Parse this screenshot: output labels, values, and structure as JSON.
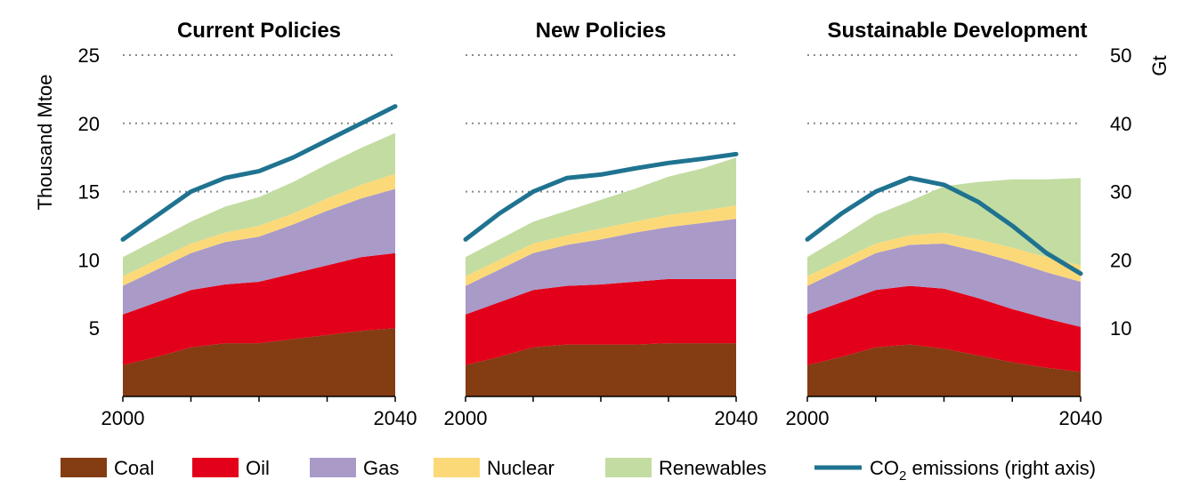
{
  "chart_data": {
    "type": "area",
    "panels": [
      {
        "title": "Current Policies",
        "x": [
          2000,
          2005,
          2010,
          2015,
          2020,
          2025,
          2030,
          2035,
          2040
        ],
        "series": [
          {
            "name": "Coal",
            "values": [
              2.3,
              2.9,
              3.6,
              3.9,
              3.9,
              4.2,
              4.5,
              4.8,
              5.0
            ]
          },
          {
            "name": "Oil",
            "values": [
              3.7,
              4.0,
              4.2,
              4.3,
              4.5,
              4.8,
              5.1,
              5.4,
              5.5
            ]
          },
          {
            "name": "Gas",
            "values": [
              2.1,
              2.4,
              2.7,
              3.1,
              3.3,
              3.6,
              4.0,
              4.3,
              4.7
            ]
          },
          {
            "name": "Nuclear",
            "values": [
              0.7,
              0.7,
              0.7,
              0.7,
              0.8,
              0.8,
              0.9,
              1.0,
              1.1
            ]
          },
          {
            "name": "Renewables",
            "values": [
              1.4,
              1.5,
              1.6,
              1.9,
              2.1,
              2.3,
              2.5,
              2.7,
              3.0
            ]
          }
        ],
        "co2": [
          23,
          26.5,
          30,
          32,
          33,
          35,
          37.5,
          40,
          42.5
        ]
      },
      {
        "title": "New Policies",
        "x": [
          2000,
          2005,
          2010,
          2015,
          2020,
          2025,
          2030,
          2035,
          2040
        ],
        "series": [
          {
            "name": "Coal",
            "values": [
              2.3,
              2.9,
              3.6,
              3.8,
              3.8,
              3.8,
              3.9,
              3.9,
              3.9
            ]
          },
          {
            "name": "Oil",
            "values": [
              3.7,
              4.0,
              4.2,
              4.3,
              4.4,
              4.6,
              4.7,
              4.7,
              4.7
            ]
          },
          {
            "name": "Gas",
            "values": [
              2.1,
              2.4,
              2.7,
              3.0,
              3.3,
              3.6,
              3.8,
              4.1,
              4.4
            ]
          },
          {
            "name": "Nuclear",
            "values": [
              0.7,
              0.7,
              0.7,
              0.7,
              0.8,
              0.8,
              0.9,
              0.9,
              1.0
            ]
          },
          {
            "name": "Renewables",
            "values": [
              1.4,
              1.5,
              1.6,
              1.8,
              2.1,
              2.4,
              2.8,
              3.1,
              3.5
            ]
          }
        ],
        "co2": [
          23,
          26.8,
          30,
          32,
          32.5,
          33.4,
          34.2,
          34.8,
          35.5
        ]
      },
      {
        "title": "Sustainable Development",
        "x": [
          2000,
          2005,
          2010,
          2015,
          2020,
          2025,
          2030,
          2035,
          2040
        ],
        "series": [
          {
            "name": "Coal",
            "values": [
              2.3,
              2.9,
              3.6,
              3.8,
              3.5,
              3.0,
              2.5,
              2.1,
              1.8
            ]
          },
          {
            "name": "Oil",
            "values": [
              3.7,
              4.0,
              4.2,
              4.3,
              4.4,
              4.2,
              3.9,
              3.6,
              3.3
            ]
          },
          {
            "name": "Gas",
            "values": [
              2.1,
              2.4,
              2.7,
              3.0,
              3.3,
              3.4,
              3.5,
              3.4,
              3.3
            ]
          },
          {
            "name": "Nuclear",
            "values": [
              0.7,
              0.7,
              0.7,
              0.7,
              0.8,
              0.9,
              1.0,
              1.1,
              1.2
            ]
          },
          {
            "name": "Renewables",
            "values": [
              1.4,
              1.7,
              2.1,
              2.5,
              3.4,
              4.2,
              5.0,
              5.7,
              6.4
            ]
          }
        ],
        "co2": [
          23,
          26.8,
          30,
          32,
          31,
          28.5,
          25,
          21,
          18
        ]
      }
    ],
    "x_ticks": [
      "2000",
      "2040"
    ],
    "xlim": [
      2000,
      2040
    ],
    "ylabel": "Thousand Mtoe",
    "ylim": [
      0,
      25
    ],
    "yticks": [
      5,
      10,
      15,
      20,
      25
    ],
    "y2label": "Gt",
    "y2lim": [
      0,
      50
    ],
    "y2ticks": [
      10,
      20,
      30,
      40,
      50
    ],
    "grid": "horizontal dotted",
    "legend_position": "bottom",
    "legend": [
      {
        "name": "Coal",
        "marker": "box"
      },
      {
        "name": "Oil",
        "marker": "box"
      },
      {
        "name": "Gas",
        "marker": "box"
      },
      {
        "name": "Nuclear",
        "marker": "box"
      },
      {
        "name": "Renewables",
        "marker": "box"
      },
      {
        "name": "CO",
        "sub": "2",
        "suffix": " emissions (right axis)",
        "marker": "line"
      }
    ],
    "colors": {
      "Coal": "#843c12",
      "Oil": "#e2001a",
      "Gas": "#a99ac8",
      "Nuclear": "#fcd978",
      "Renewables": "#c3dca2",
      "CO2": "#1f7390"
    }
  }
}
